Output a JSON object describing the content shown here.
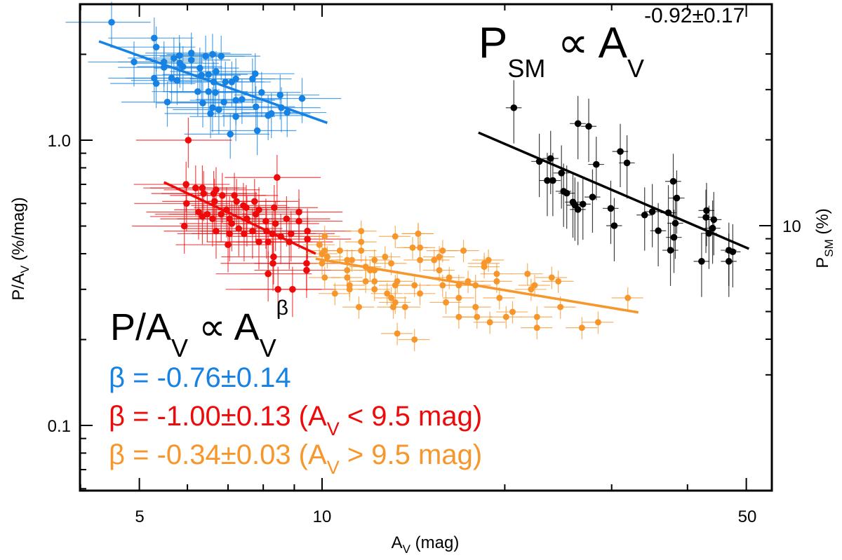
{
  "colors": {
    "blue": "#1582e4",
    "red": "#ee0a0a",
    "orange": "#f7962b",
    "black": "#000000"
  },
  "chart_data": {
    "type": "scatter",
    "xscale": "log",
    "yscale": "log",
    "y2scale": "log",
    "xlabel": {
      "main": "A",
      "sub": "V",
      "rest": " (mag)"
    },
    "ylabel": {
      "main": "P/A",
      "sub": "V",
      "rest": " (%/mag)"
    },
    "y2label": {
      "main": "P",
      "sub": "SM",
      "rest": " (%)"
    },
    "xlim": [
      4.0,
      55
    ],
    "ylim": [
      0.059,
      3.0
    ],
    "x_tick_labels": [
      "5",
      "10",
      "50"
    ],
    "x_ticks": [
      5,
      10,
      50
    ],
    "y_tick_labels": [
      "1.0",
      "0.1"
    ],
    "y_ticks": [
      1.0,
      0.1
    ],
    "y2_tick_labels": [
      "10"
    ],
    "y2_ticks": [
      10
    ],
    "grid": false,
    "annotations": {
      "psm": {
        "p": "P",
        "sub1": "SM",
        "prop": " ∝ A",
        "sub2": "V",
        "exp": "-0.92±0.17"
      },
      "pav": {
        "p": "P/A",
        "sub1": "V",
        "prop": " ∝ A",
        "sub2": "V",
        "exp": "β"
      },
      "beta_blue": {
        "text": "β  = -0.76±0.14"
      },
      "beta_red": {
        "text": "β  = -1.00±0.13 (A",
        "sub": "V",
        "rest": " < 9.5 mag)"
      },
      "beta_orange": {
        "text": "β  = -0.34±0.03 (A",
        "sub": "V",
        "rest": " > 9.5 mag)"
      }
    },
    "series": [
      {
        "color_key": "blue",
        "axis": "left",
        "x_err_frac": 0.16,
        "y_err_frac": 0.18,
        "fit": {
          "x": [
            4.29,
            10.2
          ],
          "y": [
            2.22,
            1.15
          ],
          "slope": -0.76
        },
        "points": [
          [
            4.5,
            2.59
          ],
          [
            4.9,
            1.88
          ],
          [
            5.29,
            2.28
          ],
          [
            5.33,
            2.12
          ],
          [
            5.29,
            1.65
          ],
          [
            5.33,
            1.58
          ],
          [
            5.49,
            1.88
          ],
          [
            5.49,
            1.8
          ],
          [
            5.56,
            1.36
          ],
          [
            5.65,
            1.65
          ],
          [
            5.7,
            1.94
          ],
          [
            5.77,
            1.62
          ],
          [
            5.82,
            1.98
          ],
          [
            5.83,
            1.86
          ],
          [
            5.9,
            1.81
          ],
          [
            6.09,
            2.02
          ],
          [
            6.09,
            1.91
          ],
          [
            6.24,
            1.48
          ],
          [
            6.29,
            1.79
          ],
          [
            6.33,
            1.69
          ],
          [
            6.36,
            1.35
          ],
          [
            6.43,
            1.97
          ],
          [
            6.5,
            1.7
          ],
          [
            6.5,
            1.48
          ],
          [
            6.6,
            2.0
          ],
          [
            6.55,
            1.24
          ],
          [
            6.6,
            1.3
          ],
          [
            6.63,
            1.6
          ],
          [
            6.67,
            1.47
          ],
          [
            6.69,
            1.74
          ],
          [
            6.76,
            1.28
          ],
          [
            6.82,
            1.97
          ],
          [
            6.89,
            1.36
          ],
          [
            6.93,
            1.6
          ],
          [
            7.1,
            1.6
          ],
          [
            7.21,
            1.64
          ],
          [
            7.21,
            1.38
          ],
          [
            7.21,
            1.21
          ],
          [
            7.38,
            1.39
          ],
          [
            7.68,
            1.64
          ],
          [
            7.76,
            1.71
          ],
          [
            7.78,
            1.31
          ],
          [
            7.82,
            1.08
          ],
          [
            7.06,
            1.05
          ],
          [
            7.95,
            1.47
          ],
          [
            8.15,
            1.22
          ],
          [
            8.25,
            1.24
          ],
          [
            8.53,
            1.44
          ],
          [
            8.57,
            1.3
          ],
          [
            8.76,
            1.25
          ],
          [
            9.27,
            1.4
          ]
        ]
      },
      {
        "color_key": "red",
        "axis": "left",
        "x_err_frac": 0.18,
        "y_err_frac": 0.2,
        "fit": {
          "x": [
            5.49,
            9.76
          ],
          "y": [
            0.712,
            0.4
          ],
          "slope": -1.0
        },
        "points": [
          [
            6.02,
            1.0
          ],
          [
            5.97,
            0.7
          ],
          [
            6.19,
            0.68
          ],
          [
            6.35,
            0.68
          ],
          [
            5.98,
            0.6
          ],
          [
            5.93,
            0.5
          ],
          [
            6.38,
            0.65
          ],
          [
            6.26,
            0.56
          ],
          [
            6.35,
            0.54
          ],
          [
            6.47,
            0.55
          ],
          [
            6.6,
            0.53
          ],
          [
            6.63,
            0.65
          ],
          [
            6.69,
            0.67
          ],
          [
            6.65,
            0.61
          ],
          [
            6.82,
            0.55
          ],
          [
            6.85,
            0.64
          ],
          [
            6.69,
            0.48
          ],
          [
            6.96,
            0.57
          ],
          [
            7.04,
            0.53
          ],
          [
            7.1,
            0.51
          ],
          [
            7.04,
            0.47
          ],
          [
            7.17,
            0.64
          ],
          [
            7.23,
            0.61
          ],
          [
            7.0,
            0.43
          ],
          [
            7.29,
            0.49
          ],
          [
            7.42,
            0.59
          ],
          [
            7.5,
            0.58
          ],
          [
            7.52,
            0.53
          ],
          [
            7.44,
            0.47
          ],
          [
            7.68,
            0.48
          ],
          [
            7.74,
            0.61
          ],
          [
            7.78,
            0.55
          ],
          [
            7.87,
            0.57
          ],
          [
            7.87,
            0.44
          ],
          [
            8.08,
            0.52
          ],
          [
            8.1,
            0.48
          ],
          [
            8.15,
            0.44
          ],
          [
            8.34,
            0.58
          ],
          [
            8.28,
            0.47
          ],
          [
            8.38,
            0.51
          ],
          [
            8.3,
            0.37
          ],
          [
            8.32,
            0.39
          ],
          [
            8.15,
            0.34
          ],
          [
            8.43,
            0.74
          ],
          [
            8.55,
            0.46
          ],
          [
            8.74,
            0.53
          ],
          [
            8.83,
            0.44
          ],
          [
            8.89,
            0.47
          ],
          [
            9.16,
            0.56
          ],
          [
            9.16,
            0.52
          ],
          [
            9.46,
            0.48
          ],
          [
            9.46,
            0.45
          ],
          [
            9.43,
            0.37
          ],
          [
            9.43,
            0.35
          ],
          [
            8.46,
            0.3
          ],
          [
            8.94,
            0.3
          ]
        ]
      },
      {
        "color_key": "orange",
        "axis": "left",
        "x_err_frac": 0.06,
        "y_err_frac": 0.09,
        "fit": {
          "x": [
            9.76,
            33.2
          ],
          "y": [
            0.384,
            0.249
          ],
          "slope": -0.34
        },
        "points": [
          [
            11.6,
            0.48
          ],
          [
            11.6,
            0.44
          ],
          [
            11.6,
            0.41
          ],
          [
            13.2,
            0.46
          ],
          [
            14.4,
            0.47
          ],
          [
            14.4,
            0.47
          ],
          [
            14.1,
            0.42
          ],
          [
            14.5,
            0.42
          ],
          [
            14.5,
            0.38
          ],
          [
            10.1,
            0.46
          ],
          [
            9.9,
            0.43
          ],
          [
            10.1,
            0.41
          ],
          [
            10.0,
            0.4
          ],
          [
            10.2,
            0.39
          ],
          [
            10.0,
            0.37
          ],
          [
            10.1,
            0.33
          ],
          [
            10.7,
            0.41
          ],
          [
            10.5,
            0.29
          ],
          [
            11.0,
            0.38
          ],
          [
            11.2,
            0.38
          ],
          [
            11.0,
            0.35
          ],
          [
            11.0,
            0.33
          ],
          [
            11.1,
            0.31
          ],
          [
            11.1,
            0.3
          ],
          [
            11.5,
            0.26
          ],
          [
            11.8,
            0.36
          ],
          [
            12.0,
            0.35
          ],
          [
            12.2,
            0.35
          ],
          [
            12.2,
            0.38
          ],
          [
            12.2,
            0.32
          ],
          [
            11.8,
            0.32
          ],
          [
            12.2,
            0.3
          ],
          [
            12.7,
            0.39
          ],
          [
            13.0,
            0.37
          ],
          [
            12.8,
            0.29
          ],
          [
            13.0,
            0.28
          ],
          [
            13.2,
            0.27
          ],
          [
            13.1,
            0.26
          ],
          [
            13.2,
            0.31
          ],
          [
            13.3,
            0.32
          ],
          [
            13.3,
            0.21
          ],
          [
            13.7,
            0.26
          ],
          [
            14.2,
            0.31
          ],
          [
            14.2,
            0.2
          ],
          [
            14.5,
            0.29
          ],
          [
            15.3,
            0.38
          ],
          [
            15.6,
            0.39
          ],
          [
            15.8,
            0.41
          ],
          [
            15.6,
            0.35
          ],
          [
            15.8,
            0.31
          ],
          [
            16.0,
            0.27
          ],
          [
            16.2,
            0.33
          ],
          [
            16.8,
            0.31
          ],
          [
            16.8,
            0.28
          ],
          [
            16.8,
            0.24
          ],
          [
            17.1,
            0.41
          ],
          [
            17.4,
            0.32
          ],
          [
            17.9,
            0.31
          ],
          [
            17.9,
            0.26
          ],
          [
            18.0,
            0.24
          ],
          [
            18.5,
            0.37
          ],
          [
            18.5,
            0.36
          ],
          [
            18.8,
            0.38
          ],
          [
            18.9,
            0.23
          ],
          [
            19.4,
            0.34
          ],
          [
            19.4,
            0.32
          ],
          [
            19.6,
            0.28
          ],
          [
            20.1,
            0.24
          ],
          [
            20.6,
            0.25
          ],
          [
            21.8,
            0.34
          ],
          [
            22.4,
            0.31
          ],
          [
            22.1,
            0.3
          ],
          [
            22.6,
            0.24
          ],
          [
            22.6,
            0.22
          ],
          [
            23.9,
            0.33
          ],
          [
            24.5,
            0.32
          ],
          [
            24.7,
            0.26
          ],
          [
            26.8,
            0.22
          ],
          [
            28.5,
            0.23
          ],
          [
            31.9,
            0.28
          ]
        ]
      },
      {
        "color_key": "black",
        "axis": "right",
        "x_err_frac": 0.03,
        "y_err_frac": 0.25,
        "fit": {
          "x": [
            18.1,
            50.5
          ],
          "y": [
            21.2,
            8.3
          ],
          "slope": -0.92
        },
        "points": [
          [
            20.7,
            25.9
          ],
          [
            22.8,
            16.8
          ],
          [
            23.8,
            17.2
          ],
          [
            23.5,
            14.4
          ],
          [
            24.0,
            14.4
          ],
          [
            24.8,
            15.3
          ],
          [
            25.0,
            13.2
          ],
          [
            25.3,
            13.0
          ],
          [
            25.9,
            12.1
          ],
          [
            26.1,
            11.8
          ],
          [
            26.4,
            11.4
          ],
          [
            26.9,
            11.9
          ],
          [
            26.4,
            22.8
          ],
          [
            27.5,
            22.3
          ],
          [
            27.9,
            12.6
          ],
          [
            28.3,
            16.4
          ],
          [
            29.9,
            11.5
          ],
          [
            30.3,
            10.0
          ],
          [
            31.0,
            18.2
          ],
          [
            31.8,
            16.6
          ],
          [
            34.0,
            10.9
          ],
          [
            35.0,
            11.2
          ],
          [
            35.8,
            9.6
          ],
          [
            37.2,
            11.1
          ],
          [
            37.9,
            14.3
          ],
          [
            38.4,
            12.5
          ],
          [
            38.2,
            10.2
          ],
          [
            38.0,
            9.1
          ],
          [
            37.5,
            8.2
          ],
          [
            42.2,
            7.5
          ],
          [
            42.9,
            10.7
          ],
          [
            43.0,
            11.3
          ],
          [
            44.2,
            10.5
          ],
          [
            44.0,
            9.8
          ],
          [
            43.4,
            9.4
          ],
          [
            46.8,
            8.2
          ],
          [
            47.5,
            8.1
          ],
          [
            46.8,
            7.5
          ]
        ]
      }
    ]
  }
}
